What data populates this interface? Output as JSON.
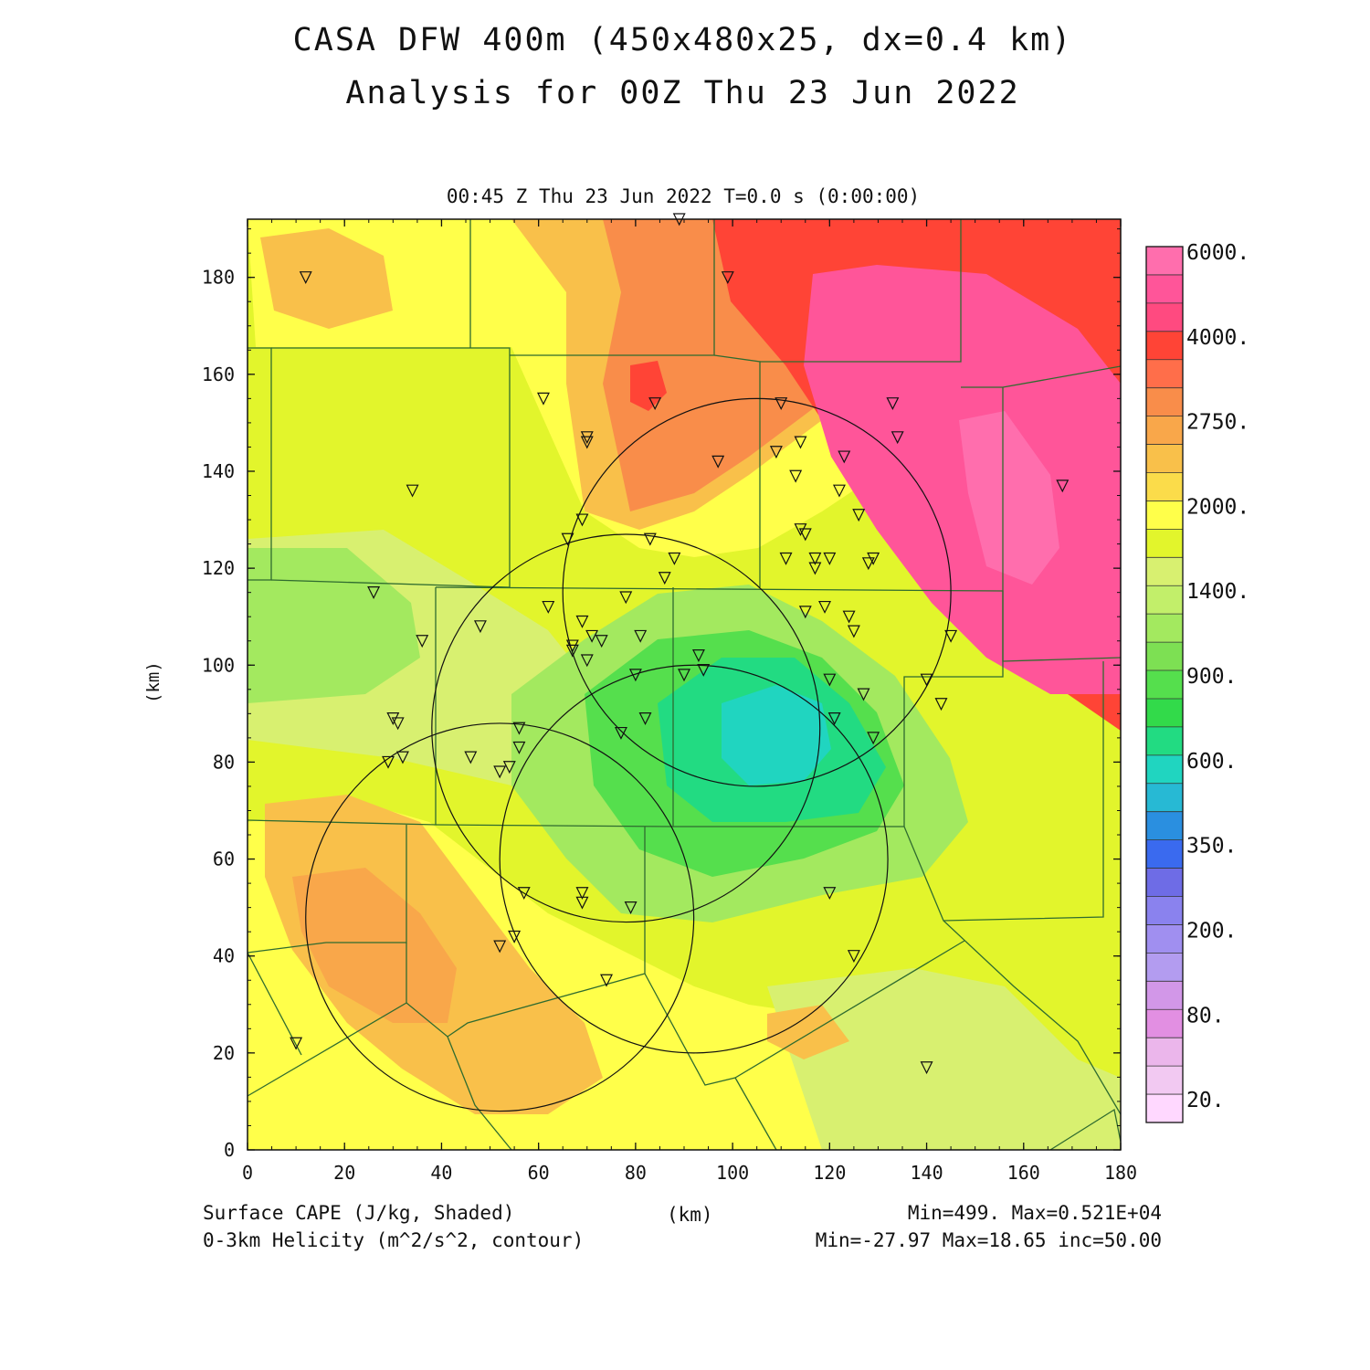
{
  "title_line1": "CASA DFW 400m (450x480x25, dx=0.4 km)",
  "title_line2": "Analysis for 00Z Thu 23 Jun 2022",
  "subtitle": "00:45 Z Thu 23 Jun 2022   T=0.0 s (0:00:00)",
  "x_axis": {
    "label": "(km)",
    "ticks": [
      0,
      20,
      40,
      60,
      80,
      100,
      120,
      140,
      160,
      180
    ],
    "range": [
      0,
      180
    ]
  },
  "y_axis": {
    "label": "(km)",
    "ticks": [
      0,
      20,
      40,
      60,
      80,
      100,
      120,
      140,
      160,
      180
    ],
    "range": [
      0,
      192
    ]
  },
  "footer": {
    "left1": "Surface CAPE (J/kg, Shaded)",
    "left2": "0-3km Helicity (m^2/s^2, contour)",
    "right1": "Min=499. Max=0.521E+04",
    "right2": "Min=-27.97 Max=18.65 inc=50.00"
  },
  "colorbar": {
    "labels": [
      "6000.",
      "4000.",
      "2750.",
      "2000.",
      "1400.",
      "900.",
      "600.",
      "350.",
      "200.",
      "80.",
      "20."
    ],
    "colors": [
      "#ff6ead",
      "#ff5599",
      "#ff4a80",
      "#ff4436",
      "#ff6e4a",
      "#f98d4a",
      "#f9a74a",
      "#f9c04a",
      "#fbdc4a",
      "#ffff4a",
      "#e2f52c",
      "#d8f070",
      "#c2ef6a",
      "#a3e95f",
      "#7de053",
      "#55df4d",
      "#32da4a",
      "#22db82",
      "#20d5c0",
      "#27b9d4",
      "#2a8fe0",
      "#3a6aef",
      "#6e6ce6",
      "#8a82ee",
      "#a08ff0",
      "#b39cf0",
      "#d297e8",
      "#e28fe2",
      "#ebb6eb",
      "#f2c9f2",
      "#ffd8ff"
    ]
  },
  "radar_circles_km": [
    {
      "cx": 105,
      "cy": 115,
      "r": 40
    },
    {
      "cx": 78,
      "cy": 87,
      "r": 40
    },
    {
      "cx": 52,
      "cy": 48,
      "r": 40
    },
    {
      "cx": 92,
      "cy": 60,
      "r": 40
    }
  ],
  "stations_km": [
    [
      12,
      180
    ],
    [
      99,
      180
    ],
    [
      89,
      192
    ],
    [
      61,
      155
    ],
    [
      84,
      154
    ],
    [
      70,
      146
    ],
    [
      70,
      147
    ],
    [
      34,
      136
    ],
    [
      97,
      142
    ],
    [
      110,
      154
    ],
    [
      114,
      146
    ],
    [
      109,
      144
    ],
    [
      123,
      143
    ],
    [
      113,
      139
    ],
    [
      133,
      154
    ],
    [
      134,
      147
    ],
    [
      122,
      136
    ],
    [
      126,
      131
    ],
    [
      168,
      137
    ],
    [
      69,
      130
    ],
    [
      66,
      126
    ],
    [
      83,
      126
    ],
    [
      114,
      128
    ],
    [
      115,
      127
    ],
    [
      88,
      122
    ],
    [
      111,
      122
    ],
    [
      117,
      122
    ],
    [
      120,
      122
    ],
    [
      128,
      121
    ],
    [
      129,
      122
    ],
    [
      117,
      120
    ],
    [
      86,
      118
    ],
    [
      26,
      115
    ],
    [
      62,
      112
    ],
    [
      78,
      114
    ],
    [
      69,
      109
    ],
    [
      115,
      111
    ],
    [
      119,
      112
    ],
    [
      124,
      110
    ],
    [
      125,
      107
    ],
    [
      48,
      108
    ],
    [
      36,
      105
    ],
    [
      67,
      104
    ],
    [
      67,
      103
    ],
    [
      71,
      106
    ],
    [
      73,
      105
    ],
    [
      81,
      106
    ],
    [
      70,
      101
    ],
    [
      145,
      106
    ],
    [
      93,
      102
    ],
    [
      94,
      99
    ],
    [
      80,
      98
    ],
    [
      90,
      98
    ],
    [
      120,
      97
    ],
    [
      140,
      97
    ],
    [
      127,
      94
    ],
    [
      143,
      92
    ],
    [
      30,
      89
    ],
    [
      31,
      88
    ],
    [
      56,
      87
    ],
    [
      77,
      86
    ],
    [
      82,
      89
    ],
    [
      121,
      89
    ],
    [
      129,
      85
    ],
    [
      29,
      80
    ],
    [
      32,
      81
    ],
    [
      46,
      81
    ],
    [
      56,
      83
    ],
    [
      54,
      79
    ],
    [
      52,
      78
    ],
    [
      69,
      53
    ],
    [
      69,
      51
    ],
    [
      57,
      53
    ],
    [
      79,
      50
    ],
    [
      120,
      53
    ],
    [
      55,
      44
    ],
    [
      52,
      42
    ],
    [
      125,
      40
    ],
    [
      74,
      35
    ],
    [
      10,
      22
    ],
    [
      140,
      17
    ]
  ]
}
